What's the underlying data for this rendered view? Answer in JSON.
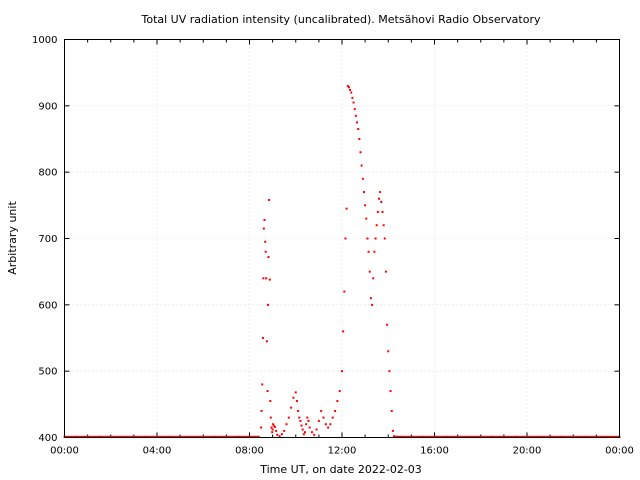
{
  "chart_data": {
    "type": "scatter",
    "title": "Total UV radiation intensity (uncalibrated). Metsähovi Radio Observatory",
    "xlabel": "Time UT, on date 2022-02-03",
    "ylabel": "Arbitrary unit",
    "xlim": [
      0,
      24
    ],
    "ylim": [
      400,
      1000
    ],
    "x_ticks": [
      0,
      4,
      8,
      12,
      16,
      20,
      24
    ],
    "x_tick_labels": [
      "00:00",
      "04:00",
      "08:00",
      "12:00",
      "16:00",
      "20:00",
      "00:00"
    ],
    "y_ticks": [
      400,
      500,
      600,
      700,
      800,
      900,
      1000
    ],
    "y_tick_labels": [
      "400",
      "500",
      "600",
      "700",
      "800",
      "900",
      "1000"
    ],
    "grid": true,
    "marker_color": "#ff0000",
    "series": [
      {
        "x": [
          0.0,
          0.5,
          1.0,
          1.5,
          2.0,
          2.5,
          3.0,
          3.5,
          4.0,
          4.5,
          5.0,
          5.5,
          6.0,
          6.5,
          7.0,
          7.5,
          8.0,
          8.4,
          8.5,
          8.52,
          8.55,
          8.58,
          8.6,
          8.62,
          8.65,
          8.68,
          8.7,
          8.72,
          8.75,
          8.78,
          8.8,
          8.82,
          8.85,
          8.88,
          8.9,
          8.92,
          8.95,
          8.98,
          9.0,
          9.02,
          9.05,
          9.1,
          9.15,
          9.2,
          9.3,
          9.4,
          9.5,
          9.6,
          9.7,
          9.8,
          9.9,
          10.0,
          10.05,
          10.1,
          10.15,
          10.2,
          10.25,
          10.3,
          10.35,
          10.4,
          10.45,
          10.5,
          10.55,
          10.6,
          10.7,
          10.8,
          10.9,
          11.0,
          11.1,
          11.2,
          11.3,
          11.4,
          11.5,
          11.6,
          11.7,
          11.8,
          11.9,
          12.0,
          12.05,
          12.1,
          12.15,
          12.2,
          12.25,
          12.3,
          12.35,
          12.4,
          12.45,
          12.5,
          12.55,
          12.6,
          12.65,
          12.7,
          12.75,
          12.8,
          12.85,
          12.9,
          12.95,
          13.0,
          13.05,
          13.1,
          13.15,
          13.2,
          13.25,
          13.3,
          13.35,
          13.4,
          13.45,
          13.5,
          13.55,
          13.6,
          13.65,
          13.7,
          13.75,
          13.8,
          13.85,
          13.9,
          13.95,
          14.0,
          14.05,
          14.1,
          14.15,
          14.2,
          14.25,
          14.3,
          14.4,
          14.6,
          15.0,
          15.5,
          16.0,
          16.5,
          17.0,
          17.5,
          18.0,
          18.5,
          19.0,
          19.5,
          20.0,
          20.5,
          21.0,
          21.5,
          22.0,
          22.5,
          23.0,
          23.5,
          24.0
        ],
        "y": [
          401,
          401,
          401,
          401,
          401,
          401,
          401,
          401,
          401,
          401,
          401,
          401,
          401,
          401,
          401,
          401,
          401,
          401,
          415,
          440,
          480,
          550,
          640,
          715,
          728,
          695,
          680,
          640,
          545,
          470,
          600,
          672,
          758,
          638,
          455,
          430,
          415,
          408,
          412,
          420,
          418,
          416,
          410,
          404,
          402,
          405,
          410,
          420,
          430,
          445,
          460,
          468,
          455,
          440,
          430,
          425,
          418,
          412,
          405,
          408,
          420,
          430,
          425,
          415,
          408,
          404,
          412,
          425,
          440,
          430,
          420,
          415,
          420,
          430,
          440,
          455,
          470,
          500,
          560,
          620,
          700,
          745,
          930,
          928,
          924,
          920,
          912,
          905,
          895,
          885,
          875,
          865,
          850,
          830,
          810,
          790,
          770,
          750,
          730,
          700,
          680,
          650,
          610,
          600,
          640,
          680,
          700,
          720,
          740,
          760,
          770,
          755,
          740,
          720,
          700,
          650,
          570,
          530,
          500,
          470,
          440,
          410,
          402,
          401,
          401,
          401,
          401,
          401,
          401,
          401,
          401,
          401,
          401,
          401,
          401,
          401,
          401,
          401,
          401,
          401,
          401,
          401,
          401,
          401,
          401
        ]
      }
    ]
  }
}
